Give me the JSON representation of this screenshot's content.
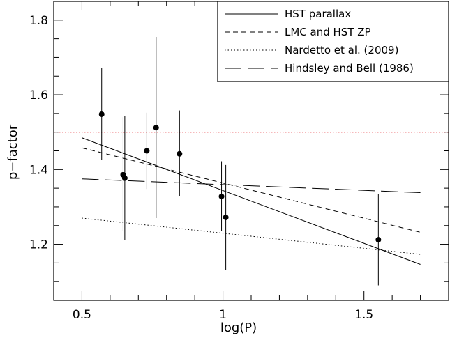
{
  "chart_data": {
    "type": "scatter",
    "xlabel": "log(P)",
    "ylabel": "p−factor",
    "xlim": [
      0.4,
      1.8
    ],
    "ylim": [
      1.05,
      1.85
    ],
    "x_major_ticks": [
      0.5,
      1,
      1.5
    ],
    "x_tick_labels": [
      "0.5",
      "1",
      "1.5"
    ],
    "y_major_ticks": [
      1.2,
      1.4,
      1.6,
      1.8
    ],
    "y_tick_labels": [
      "1.2",
      "1.4",
      "1.6",
      "1.8"
    ],
    "grid": false,
    "legend_position": "top-right",
    "points": [
      {
        "x": 0.57,
        "y": 1.548,
        "ylo": 1.425,
        "yhi": 1.672
      },
      {
        "x": 0.646,
        "y": 1.386,
        "ylo": 1.235,
        "yhi": 1.54
      },
      {
        "x": 0.652,
        "y": 1.377,
        "ylo": 1.212,
        "yhi": 1.543
      },
      {
        "x": 0.73,
        "y": 1.45,
        "ylo": 1.348,
        "yhi": 1.552
      },
      {
        "x": 0.763,
        "y": 1.512,
        "ylo": 1.27,
        "yhi": 1.755
      },
      {
        "x": 0.846,
        "y": 1.442,
        "ylo": 1.328,
        "yhi": 1.558
      },
      {
        "x": 0.995,
        "y": 1.328,
        "ylo": 1.236,
        "yhi": 1.422
      },
      {
        "x": 1.01,
        "y": 1.272,
        "ylo": 1.132,
        "yhi": 1.412
      },
      {
        "x": 1.551,
        "y": 1.212,
        "ylo": 1.09,
        "yhi": 1.334
      }
    ],
    "lines": [
      {
        "name": "HST parallax",
        "dash": "solid",
        "x": [
          0.5,
          1.7
        ],
        "y": [
          1.485,
          1.146
        ]
      },
      {
        "name": "LMC and HST ZP",
        "dash": "dashed",
        "x": [
          0.5,
          1.7
        ],
        "y": [
          1.458,
          1.232
        ]
      },
      {
        "name": "Nardetto et al. (2009)",
        "dash": "dotted",
        "x": [
          0.5,
          1.7
        ],
        "y": [
          1.27,
          1.173
        ]
      },
      {
        "name": "Hindsley and Bell (1986)",
        "dash": "longdash",
        "x": [
          0.5,
          1.7
        ],
        "y": [
          1.375,
          1.338
        ]
      }
    ],
    "reference_line": {
      "y": 1.5,
      "color": "#e8434a",
      "dash": "dotted"
    },
    "legend_entries": [
      {
        "label": "HST parallax",
        "dash": "solid"
      },
      {
        "label": "LMC and HST ZP",
        "dash": "dashed"
      },
      {
        "label": "Nardetto et al. (2009)",
        "dash": "dotted"
      },
      {
        "label": "Hindsley and Bell (1986)",
        "dash": "longdash"
      }
    ],
    "colors": {
      "ink": "#000000",
      "reference": "#e8434a",
      "background": "#ffffff"
    }
  }
}
